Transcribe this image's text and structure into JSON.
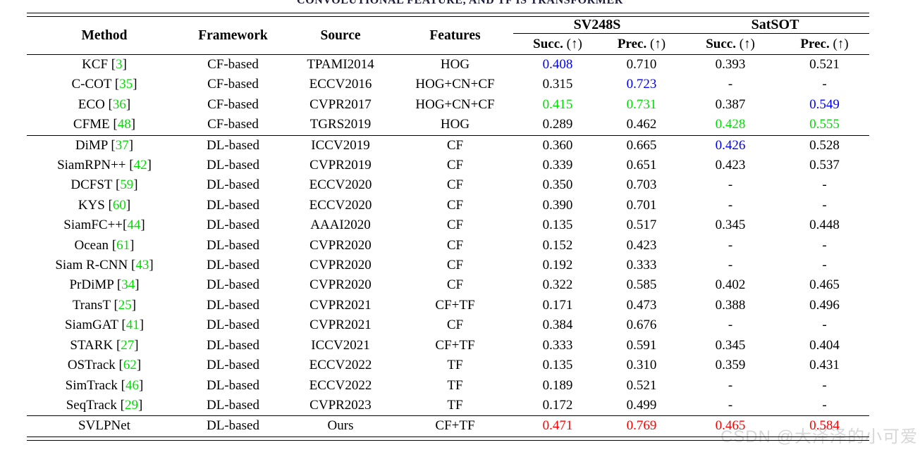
{
  "caption": "CONVOLUTIONAL FEATURE, AND TF IS TRANSFORMER",
  "colors": {
    "cite": "#00dd00",
    "green": "#00dd00",
    "blue": "#0000ff",
    "red": "#ff0000",
    "text": "#000000",
    "watermark": "#d7d7d7"
  },
  "table": {
    "headers": {
      "method": "Method",
      "framework": "Framework",
      "source": "Source",
      "features": "Features",
      "sv248s": "SV248S",
      "satsot": "SatSOT",
      "succ": "Succ.",
      "prec": "Prec.",
      "arrow": "(↑)"
    },
    "rows": [
      {
        "section": "cf",
        "method": "KCF",
        "cite": "3",
        "framework": "CF-based",
        "source": "TPAMI2014",
        "features": "HOG",
        "values": [
          {
            "v": "0.408",
            "c": "blue"
          },
          {
            "v": "0.710"
          },
          {
            "v": "0.393"
          },
          {
            "v": "0.521"
          }
        ]
      },
      {
        "section": "cf",
        "method": "C-COT",
        "cite": "35",
        "framework": "CF-based",
        "source": "ECCV2016",
        "features": "HOG+CN+CF",
        "values": [
          {
            "v": "0.315"
          },
          {
            "v": "0.723",
            "c": "blue"
          },
          {
            "v": "-"
          },
          {
            "v": "-"
          }
        ]
      },
      {
        "section": "cf",
        "method": "ECO",
        "cite": "36",
        "framework": "CF-based",
        "source": "CVPR2017",
        "features": "HOG+CN+CF",
        "values": [
          {
            "v": "0.415",
            "c": "green"
          },
          {
            "v": "0.731",
            "c": "green"
          },
          {
            "v": "0.387"
          },
          {
            "v": "0.549",
            "c": "blue"
          }
        ]
      },
      {
        "section": "cf",
        "method": "CFME",
        "cite": "48",
        "framework": "CF-based",
        "source": "TGRS2019",
        "features": "HOG",
        "values": [
          {
            "v": "0.289"
          },
          {
            "v": "0.462"
          },
          {
            "v": "0.428",
            "c": "green"
          },
          {
            "v": "0.555",
            "c": "green"
          }
        ]
      },
      {
        "section": "dl",
        "method": "DiMP",
        "cite": "37",
        "framework": "DL-based",
        "source": "ICCV2019",
        "features": "CF",
        "values": [
          {
            "v": "0.360"
          },
          {
            "v": "0.665"
          },
          {
            "v": "0.426",
            "c": "blue"
          },
          {
            "v": "0.528"
          }
        ]
      },
      {
        "section": "dl",
        "method": "SiamRPN++",
        "cite": "42",
        "framework": "DL-based",
        "source": "CVPR2019",
        "features": "CF",
        "values": [
          {
            "v": "0.339"
          },
          {
            "v": "0.651"
          },
          {
            "v": "0.423"
          },
          {
            "v": "0.537"
          }
        ]
      },
      {
        "section": "dl",
        "method": "DCFST",
        "cite": "59",
        "framework": "DL-based",
        "source": "ECCV2020",
        "features": "CF",
        "values": [
          {
            "v": "0.350"
          },
          {
            "v": "0.703"
          },
          {
            "v": "-"
          },
          {
            "v": "-"
          }
        ]
      },
      {
        "section": "dl",
        "method": "KYS",
        "cite": "60",
        "framework": "DL-based",
        "source": "ECCV2020",
        "features": "CF",
        "values": [
          {
            "v": "0.390"
          },
          {
            "v": "0.701"
          },
          {
            "v": "-"
          },
          {
            "v": "-"
          }
        ]
      },
      {
        "section": "dl",
        "method": "SiamFC++",
        "cite": "44",
        "tight": true,
        "framework": "DL-based",
        "source": "AAAI2020",
        "features": "CF",
        "values": [
          {
            "v": "0.135"
          },
          {
            "v": "0.517"
          },
          {
            "v": "0.345"
          },
          {
            "v": "0.448"
          }
        ]
      },
      {
        "section": "dl",
        "method": "Ocean",
        "cite": "61",
        "framework": "DL-based",
        "source": "CVPR2020",
        "features": "CF",
        "values": [
          {
            "v": "0.152"
          },
          {
            "v": "0.423"
          },
          {
            "v": "-"
          },
          {
            "v": "-"
          }
        ]
      },
      {
        "section": "dl",
        "method": "Siam R-CNN",
        "cite": "43",
        "framework": "DL-based",
        "source": "CVPR2020",
        "features": "CF",
        "values": [
          {
            "v": "0.192"
          },
          {
            "v": "0.333"
          },
          {
            "v": "-"
          },
          {
            "v": "-"
          }
        ]
      },
      {
        "section": "dl",
        "method": "PrDiMP",
        "cite": "34",
        "framework": "DL-based",
        "source": "CVPR2020",
        "features": "CF",
        "values": [
          {
            "v": "0.322"
          },
          {
            "v": "0.585"
          },
          {
            "v": "0.402"
          },
          {
            "v": "0.465"
          }
        ]
      },
      {
        "section": "dl",
        "method": "TransT",
        "cite": "25",
        "framework": "DL-based",
        "source": "CVPR2021",
        "features": "CF+TF",
        "values": [
          {
            "v": "0.171"
          },
          {
            "v": "0.473"
          },
          {
            "v": "0.388"
          },
          {
            "v": "0.496"
          }
        ]
      },
      {
        "section": "dl",
        "method": "SiamGAT",
        "cite": "41",
        "framework": "DL-based",
        "source": "CVPR2021",
        "features": "CF",
        "values": [
          {
            "v": "0.384"
          },
          {
            "v": "0.676"
          },
          {
            "v": "-"
          },
          {
            "v": "-"
          }
        ]
      },
      {
        "section": "dl",
        "method": "STARK",
        "cite": "27",
        "framework": "DL-based",
        "source": "ICCV2021",
        "features": "CF+TF",
        "values": [
          {
            "v": "0.333"
          },
          {
            "v": "0.591"
          },
          {
            "v": "0.345"
          },
          {
            "v": "0.404"
          }
        ]
      },
      {
        "section": "dl",
        "method": "OSTrack",
        "cite": "62",
        "framework": "DL-based",
        "source": "ECCV2022",
        "features": "TF",
        "values": [
          {
            "v": "0.135"
          },
          {
            "v": "0.310"
          },
          {
            "v": "0.359"
          },
          {
            "v": "0.431"
          }
        ]
      },
      {
        "section": "dl",
        "method": "SimTrack",
        "cite": "46",
        "framework": "DL-based",
        "source": "ECCV2022",
        "features": "TF",
        "values": [
          {
            "v": "0.189"
          },
          {
            "v": "0.521"
          },
          {
            "v": "-"
          },
          {
            "v": "-"
          }
        ]
      },
      {
        "section": "dl",
        "method": "SeqTrack",
        "cite": "29",
        "framework": "DL-based",
        "source": "CVPR2023",
        "features": "TF",
        "values": [
          {
            "v": "0.172"
          },
          {
            "v": "0.499"
          },
          {
            "v": "-"
          },
          {
            "v": "-"
          }
        ]
      },
      {
        "section": "ours",
        "method": "SVLPNet",
        "cite": null,
        "framework": "DL-based",
        "source": "Ours",
        "features": "CF+TF",
        "values": [
          {
            "v": "0.471",
            "c": "red"
          },
          {
            "v": "0.769",
            "c": "red"
          },
          {
            "v": "0.465",
            "c": "red"
          },
          {
            "v": "0.584",
            "c": "red"
          }
        ]
      }
    ]
  },
  "watermark": "CSDN @大泽泽的小可爱"
}
